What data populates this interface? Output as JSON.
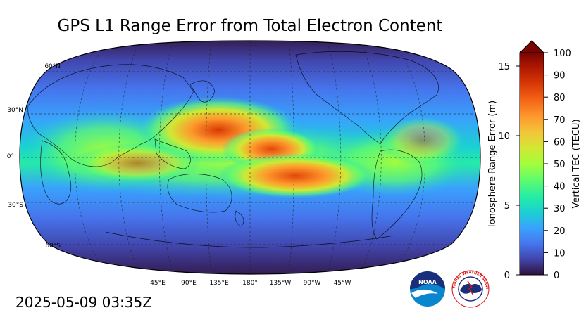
{
  "title": "GPS L1 Range Error from Total Electron Content",
  "timestamp": "2025-05-09 03:35Z",
  "map": {
    "projection": "Robinson",
    "center_longitude": "180°",
    "lat_labels": [
      "60°N",
      "30°N",
      "0°",
      "30°S",
      "60°S"
    ],
    "lon_labels": [
      "45°E",
      "90°E",
      "135°E",
      "180°",
      "135°W",
      "90°W",
      "45°W"
    ]
  },
  "colorbar": {
    "left_axis_title": "Ionosphere Range Error (m)",
    "right_axis_title": "Vertical TEC (TECU)",
    "left_ticks": [
      "0",
      "5",
      "10",
      "15"
    ],
    "right_ticks": [
      "0",
      "10",
      "20",
      "30",
      "40",
      "50",
      "60",
      "70",
      "80",
      "90",
      "100"
    ],
    "extend": "max",
    "colormap": [
      "#30123b",
      "#4145ab",
      "#4675ed",
      "#39a2fc",
      "#1bcfd4",
      "#24eca6",
      "#61fc6c",
      "#a4fc3b",
      "#d1e834",
      "#f3c63a",
      "#fe9b2d",
      "#f36315",
      "#d93806",
      "#b11901",
      "#7a0402"
    ]
  },
  "logos": {
    "noaa": "NOAA",
    "nws": "NATIONAL WEATHER SERVICE"
  }
}
